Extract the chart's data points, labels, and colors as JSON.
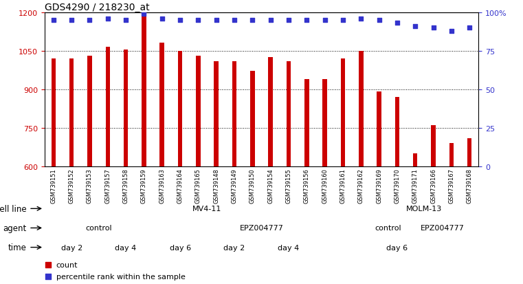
{
  "title": "GDS4290 / 218230_at",
  "samples": [
    "GSM739151",
    "GSM739152",
    "GSM739153",
    "GSM739157",
    "GSM739158",
    "GSM739159",
    "GSM739163",
    "GSM739164",
    "GSM739165",
    "GSM739148",
    "GSM739149",
    "GSM739150",
    "GSM739154",
    "GSM739155",
    "GSM739156",
    "GSM739160",
    "GSM739161",
    "GSM739162",
    "GSM739169",
    "GSM739170",
    "GSM739171",
    "GSM739166",
    "GSM739167",
    "GSM739168"
  ],
  "counts": [
    1020,
    1020,
    1030,
    1065,
    1055,
    1185,
    1080,
    1050,
    1030,
    1010,
    1010,
    970,
    1025,
    1010,
    940,
    940,
    1020,
    1050,
    890,
    870,
    650,
    760,
    690,
    710
  ],
  "percentile_ranks": [
    95,
    95,
    95,
    96,
    95,
    99,
    96,
    95,
    95,
    95,
    95,
    95,
    95,
    95,
    95,
    95,
    95,
    96,
    95,
    93,
    91,
    90,
    88,
    90
  ],
  "ymin": 600,
  "ymax": 1200,
  "yticks_left": [
    600,
    750,
    900,
    1050,
    1200
  ],
  "yticks_right": [
    0,
    25,
    50,
    75,
    100
  ],
  "bar_color": "#cc0000",
  "dot_color": "#3333cc",
  "bar_width": 0.25,
  "cell_line_rows": [
    {
      "start": 0,
      "end": 17,
      "color": "#aaddaa",
      "label": "MV4-11"
    },
    {
      "start": 18,
      "end": 23,
      "color": "#44cc44",
      "label": "MOLM-13"
    }
  ],
  "agent_rows": [
    {
      "start": 0,
      "end": 5,
      "color": "#ccbbee",
      "label": "control"
    },
    {
      "start": 6,
      "end": 17,
      "color": "#9977cc",
      "label": "EPZ004777"
    },
    {
      "start": 18,
      "end": 19,
      "color": "#ccbbee",
      "label": "control"
    },
    {
      "start": 20,
      "end": 23,
      "color": "#9977cc",
      "label": "EPZ004777"
    }
  ],
  "time_rows": [
    {
      "start": 0,
      "end": 2,
      "color": "#ffcccc",
      "label": "day 2"
    },
    {
      "start": 3,
      "end": 5,
      "color": "#ff9999",
      "label": "day 4"
    },
    {
      "start": 6,
      "end": 8,
      "color": "#ee7766",
      "label": "day 6"
    },
    {
      "start": 9,
      "end": 11,
      "color": "#ffcccc",
      "label": "day 2"
    },
    {
      "start": 12,
      "end": 14,
      "color": "#ff9999",
      "label": "day 4"
    },
    {
      "start": 15,
      "end": 23,
      "color": "#ee7766",
      "label": "day 6"
    }
  ],
  "xtick_bg_color": "#cccccc",
  "spine_color": "#000000",
  "grid_color": "#000000",
  "legend_bar_label": "count",
  "legend_dot_label": "percentile rank within the sample"
}
